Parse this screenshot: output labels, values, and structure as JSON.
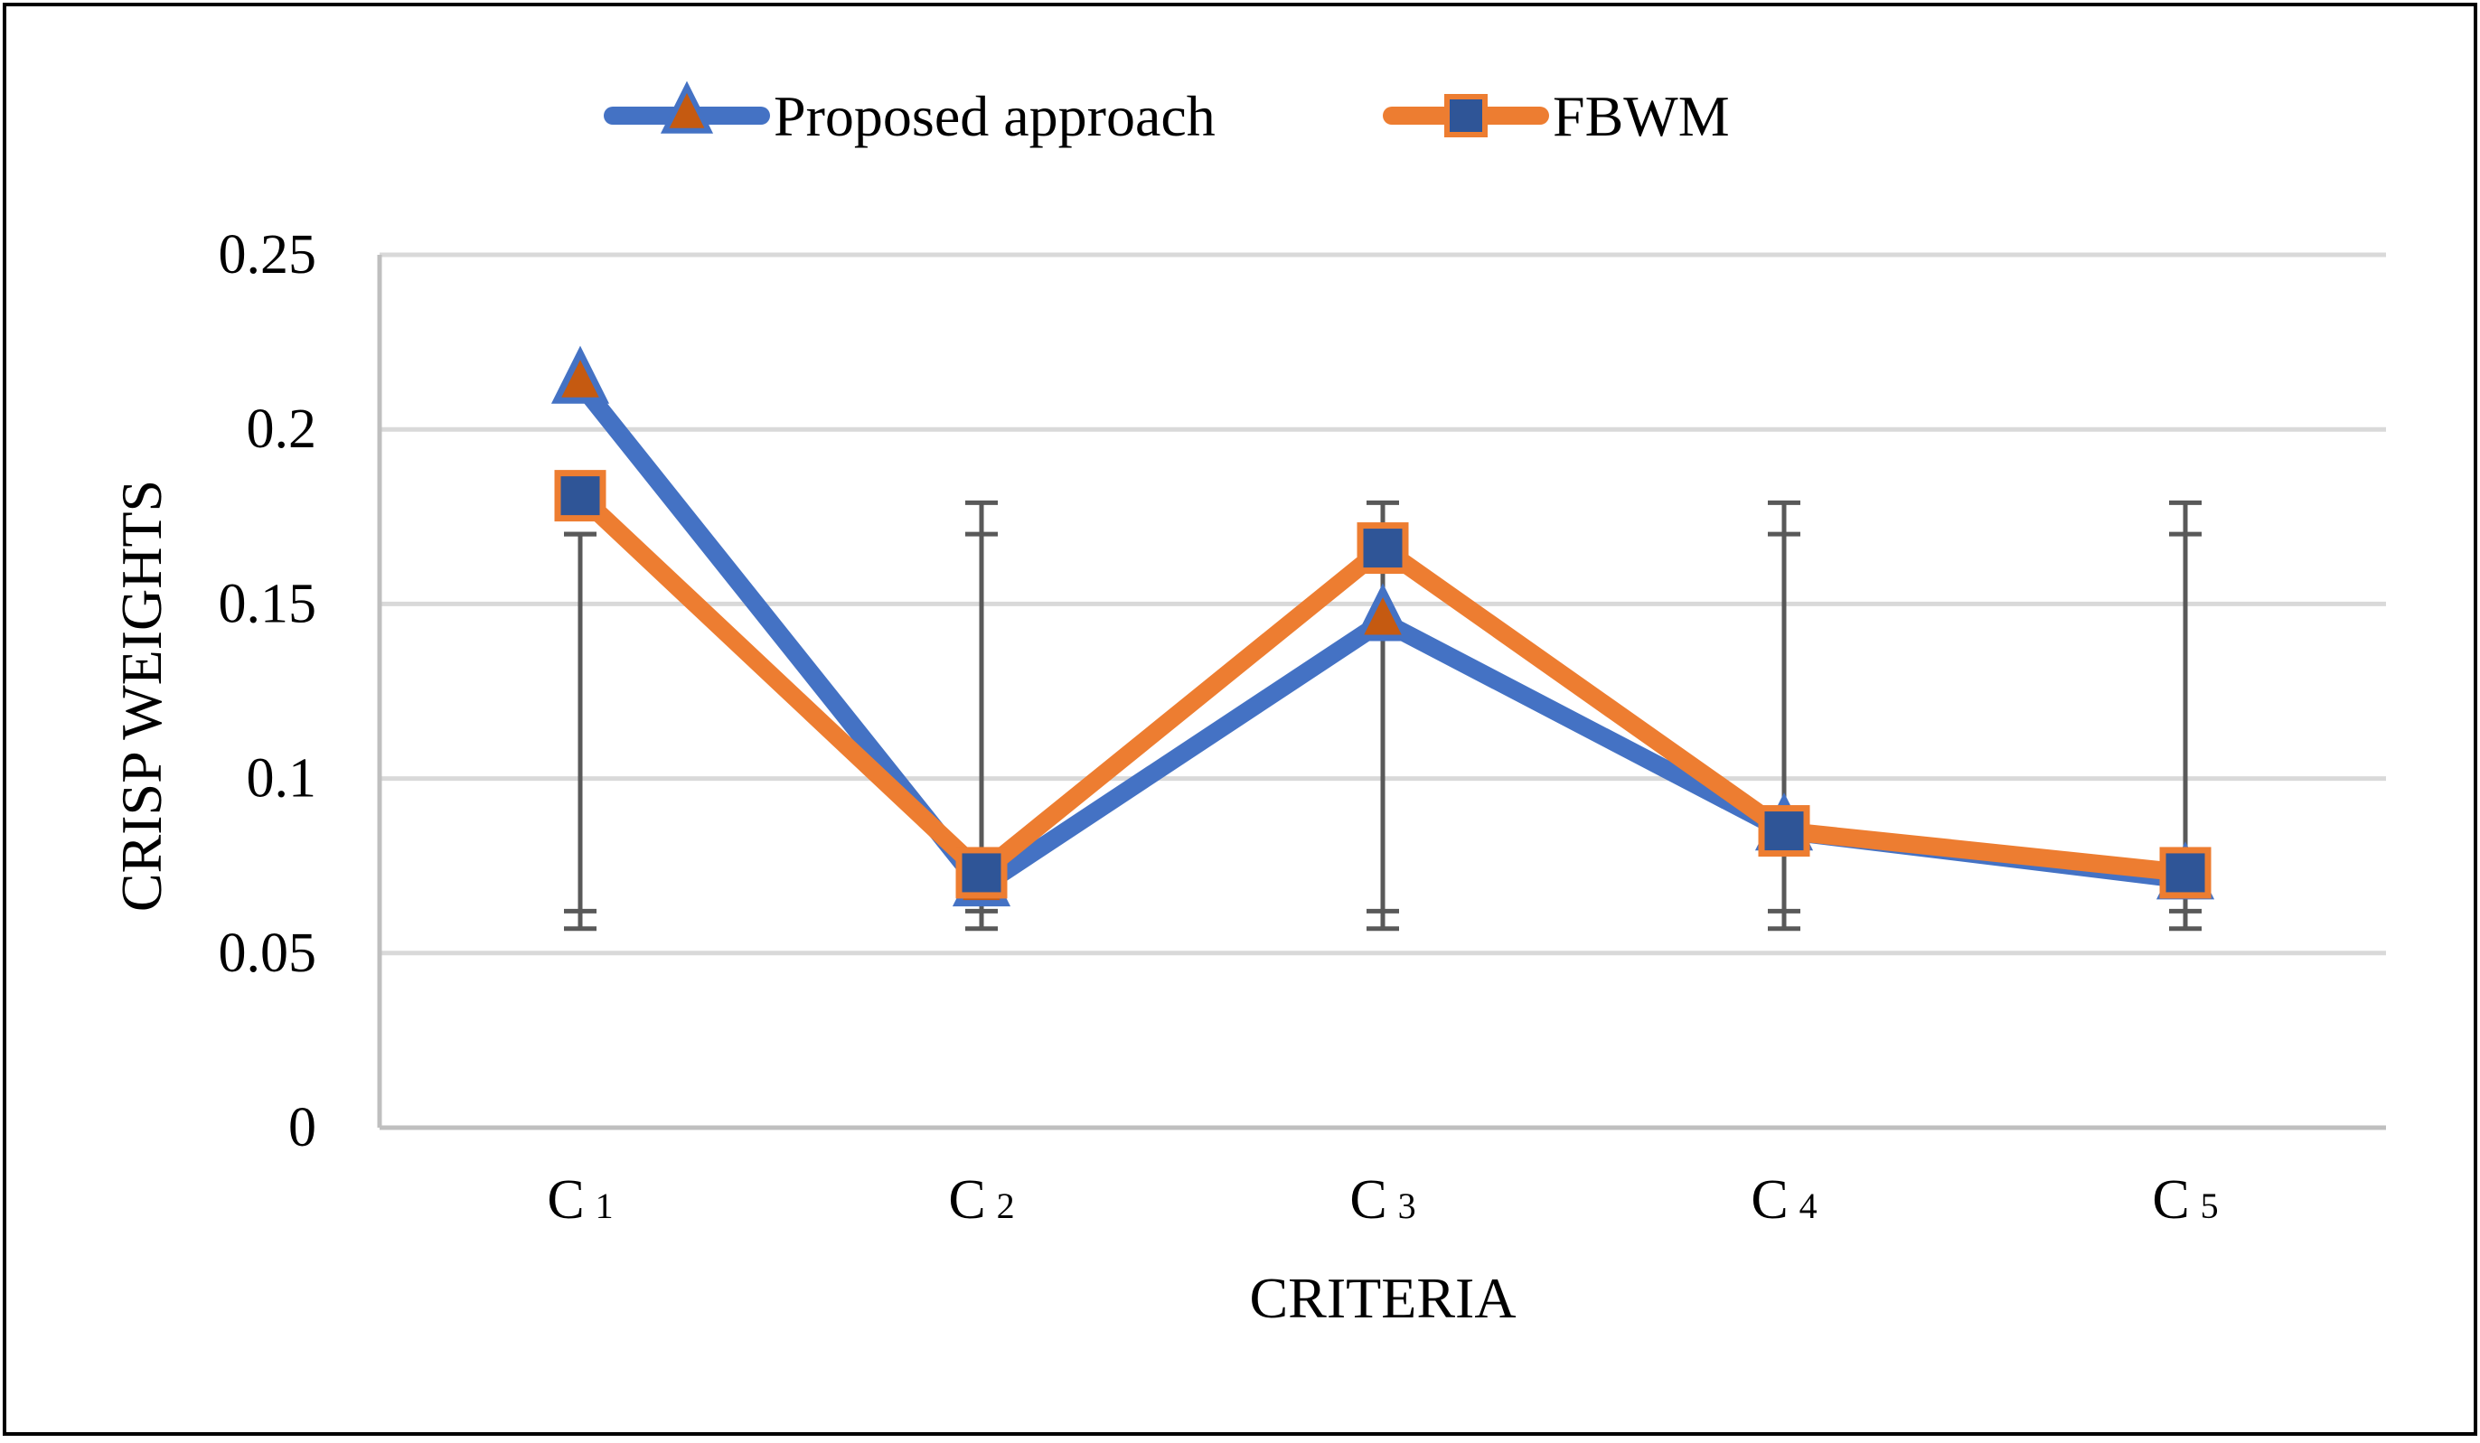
{
  "chart_data": {
    "type": "line",
    "title": "",
    "xlabel": "CRITERIA",
    "ylabel": "CRISP WEIGHTS",
    "categories": [
      {
        "base": "C",
        "sub": "1"
      },
      {
        "base": "C",
        "sub": "2"
      },
      {
        "base": "C",
        "sub": "3"
      },
      {
        "base": "C",
        "sub": "4"
      },
      {
        "base": "C",
        "sub": "5"
      }
    ],
    "ylim": [
      0,
      0.25
    ],
    "yticks": [
      "0",
      "0.05",
      "0.1",
      "0.15",
      "0.2",
      "0.25"
    ],
    "ytick_values": [
      0,
      0.05,
      0.1,
      0.15,
      0.2,
      0.25
    ],
    "grid": true,
    "legend_position": "top-center",
    "series": [
      {
        "name": "Proposed approach",
        "values": [
          0.213,
          0.069,
          0.145,
          0.085,
          0.071
        ],
        "line_color": "#4472C4",
        "marker": "triangle",
        "marker_fill": "#C55A11",
        "marker_edge": "#4472C4"
      },
      {
        "name": "FBWM",
        "values": [
          0.181,
          0.073,
          0.166,
          0.085,
          0.073
        ],
        "line_color": "#ED7D31",
        "marker": "square",
        "marker_fill": "#2F5597",
        "marker_edge": "#ED7D31"
      }
    ],
    "error_bars": {
      "color": "#595959",
      "items": [
        {
          "low": 0.057,
          "low_inner": 0.062,
          "high": 0.17,
          "high_inner": 0.17
        },
        {
          "low": 0.057,
          "low_inner": 0.062,
          "high": 0.179,
          "high_inner": 0.17
        },
        {
          "low": 0.057,
          "low_inner": 0.062,
          "high": 0.179,
          "high_inner": 0.17
        },
        {
          "low": 0.057,
          "low_inner": 0.062,
          "high": 0.179,
          "high_inner": 0.17
        },
        {
          "low": 0.057,
          "low_inner": 0.062,
          "high": 0.179,
          "high_inner": 0.17
        }
      ]
    },
    "colors": {
      "grid": "#D9D9D9",
      "axis": "#BFBFBF",
      "frame": "#000000",
      "text": "#000000"
    }
  }
}
